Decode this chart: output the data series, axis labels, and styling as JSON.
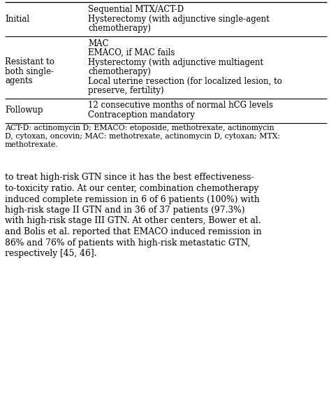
{
  "table_rows": [
    {
      "category": "Initial",
      "cat_lines": [
        "Initial"
      ],
      "treat_lines": [
        "Sequential MTX/ACT-D",
        "Hysterectomy (with adjunctive single-agent",
        "chemotherapy)"
      ]
    },
    {
      "category": "Resistant to both single-agents",
      "cat_lines": [
        "Resistant to",
        "both single-",
        "agents"
      ],
      "treat_lines": [
        "MAC",
        "EMACO, if MAC fails",
        "Hysterectomy (with adjunctive multiagent",
        "chemotherapy)",
        "Local uterine resection (for localized lesion, to",
        "preserve, fertility)"
      ]
    },
    {
      "category": "Followup",
      "cat_lines": [
        "Followup"
      ],
      "treat_lines": [
        "12 consecutive months of normal hCG levels",
        "Contraception mandatory"
      ]
    }
  ],
  "footnote_lines": [
    "ACT-D: actinomycin D; EMACO: etoposide, methotrexate, actinomycin",
    "D, cytoxan, oncovin; MAC: methotrexate, actinomycin D, cytoxan; MTX:",
    "methotrexate."
  ],
  "body_lines": [
    "to treat high-risk GTN since it has the best effectiveness-",
    "to-toxicity ratio. At our center, combination chemotherapy",
    "induced complete remission in 6 of 6 patients (100%) with",
    "high-risk stage II GTN and in 36 of 37 patients (97.3%)",
    "with high-risk stage III GTN. At other centers, Bower et al.",
    "and Bolis et al. reported that EMACO induced remission in",
    "86% and 76% of patients with high-risk metastatic GTN,",
    "respectively [45, 46]."
  ],
  "bg_color": "#ffffff",
  "text_color": "#000000",
  "line_color": "#000000",
  "table_fs": 8.5,
  "footnote_fs": 7.8,
  "body_fs": 8.8
}
